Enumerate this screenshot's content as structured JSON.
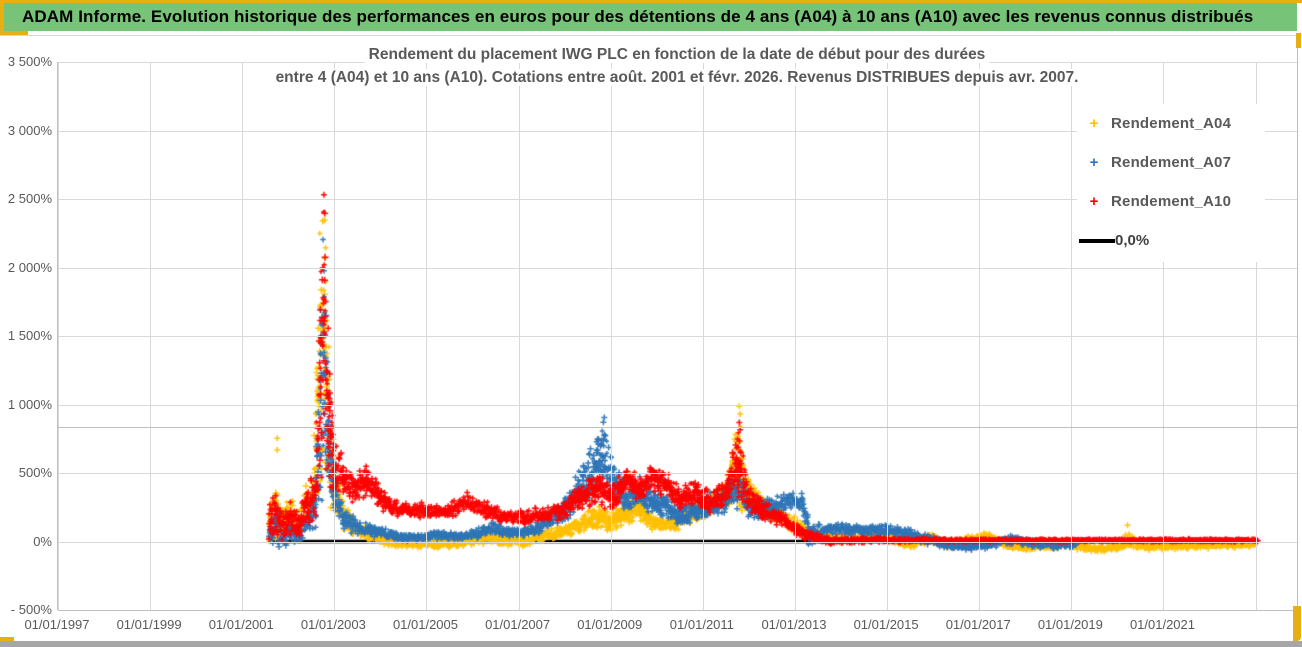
{
  "header": {
    "title": "ADAM Informe. Evolution historique des performances en euros pour des détentions de 4 ans (A04) à 10 ans (A10) avec les revenus connus distribués",
    "bg_color": "#77C377",
    "accent_color": "#E6AF13"
  },
  "chart_data": {
    "type": "scatter",
    "title_line1": "Rendement du placement IWG PLC en fonction de la date de début pour des durées",
    "title_line2": "entre 4 (A04) et 10 ans (A10). Cotations entre août. 2001 et févr. 2026. Revenus DISTRIBUES depuis avr. 2007.",
    "grid": true,
    "legend_position": "right-top",
    "x_axis": {
      "min_year": 1997,
      "max_year": 2023.92,
      "ticks": [
        {
          "year": 1997,
          "label": "01/01/1997"
        },
        {
          "year": 1999,
          "label": "01/01/1999"
        },
        {
          "year": 2001,
          "label": "01/01/2001"
        },
        {
          "year": 2003,
          "label": "01/01/2003"
        },
        {
          "year": 2005,
          "label": "01/01/2005"
        },
        {
          "year": 2007,
          "label": "01/01/2007"
        },
        {
          "year": 2009,
          "label": "01/01/2009"
        },
        {
          "year": 2011,
          "label": "01/01/2011"
        },
        {
          "year": 2013,
          "label": "01/01/2013"
        },
        {
          "year": 2015,
          "label": "01/01/2015"
        },
        {
          "year": 2017,
          "label": "01/01/2017"
        },
        {
          "year": 2019,
          "label": "01/01/2019"
        },
        {
          "year": 2021,
          "label": "01/01/2021"
        },
        {
          "year": 2023,
          "label": ""
        }
      ]
    },
    "y_axis": {
      "min_pct": -500,
      "max_pct": 3500,
      "step_pct": 500,
      "tick_labels": [
        "3 500%",
        "3 000%",
        "2 500%",
        "2 000%",
        "1 500%",
        "1 000%",
        "500%",
        "0%",
        "- 500%"
      ]
    },
    "extra_sheet_line_pct": 836,
    "zero_line": {
      "label": "0,0%",
      "color": "#000000",
      "start_year": 2001.58,
      "end_year": 2023.05,
      "pct": 0
    },
    "series": [
      {
        "name": "Rendement_A04",
        "color": "#FFC000",
        "marker": "+",
        "band_keypoints": [
          [
            2001.58,
            150,
            160
          ],
          [
            2001.75,
            220,
            200
          ],
          [
            2001.9,
            120,
            140
          ],
          [
            2002.05,
            200,
            180
          ],
          [
            2002.2,
            120,
            120
          ],
          [
            2002.35,
            250,
            160
          ],
          [
            2002.55,
            300,
            200
          ],
          [
            2002.68,
            1300,
            1200
          ],
          [
            2002.78,
            1600,
            1420
          ],
          [
            2002.88,
            800,
            620
          ],
          [
            2003.0,
            420,
            250
          ],
          [
            2003.2,
            200,
            120
          ],
          [
            2003.5,
            90,
            70
          ],
          [
            2003.9,
            40,
            50
          ],
          [
            2004.3,
            0,
            40
          ],
          [
            2004.8,
            -20,
            35
          ],
          [
            2005.3,
            -15,
            35
          ],
          [
            2005.8,
            0,
            40
          ],
          [
            2006.2,
            20,
            45
          ],
          [
            2006.7,
            10,
            40
          ],
          [
            2007.1,
            0,
            40
          ],
          [
            2007.5,
            40,
            50
          ],
          [
            2007.9,
            60,
            50
          ],
          [
            2008.3,
            120,
            70
          ],
          [
            2008.7,
            180,
            90
          ],
          [
            2009.0,
            150,
            80
          ],
          [
            2009.3,
            200,
            90
          ],
          [
            2009.6,
            250,
            100
          ],
          [
            2009.9,
            150,
            70
          ],
          [
            2010.2,
            120,
            60
          ],
          [
            2010.5,
            160,
            70
          ],
          [
            2010.9,
            230,
            90
          ],
          [
            2011.2,
            280,
            100
          ],
          [
            2011.5,
            350,
            120
          ],
          [
            2011.78,
            560,
            430
          ],
          [
            2011.95,
            380,
            150
          ],
          [
            2012.2,
            280,
            100
          ],
          [
            2012.5,
            210,
            80
          ],
          [
            2012.8,
            160,
            70
          ],
          [
            2013.1,
            100,
            60
          ],
          [
            2013.4,
            50,
            40
          ],
          [
            2013.8,
            30,
            35
          ],
          [
            2014.3,
            20,
            30
          ],
          [
            2014.7,
            50,
            40
          ],
          [
            2015.1,
            20,
            35
          ],
          [
            2015.5,
            -25,
            30
          ],
          [
            2015.9,
            30,
            45
          ],
          [
            2016.3,
            -25,
            30
          ],
          [
            2016.8,
            10,
            40
          ],
          [
            2017.2,
            40,
            40
          ],
          [
            2017.6,
            -30,
            30
          ],
          [
            2018.0,
            -45,
            25
          ],
          [
            2018.5,
            -25,
            30
          ],
          [
            2019.0,
            -20,
            30
          ],
          [
            2019.5,
            -55,
            25
          ],
          [
            2020.0,
            -45,
            25
          ],
          [
            2020.25,
            20,
            70
          ],
          [
            2020.6,
            -40,
            25
          ],
          [
            2021.2,
            -35,
            25
          ],
          [
            2021.8,
            -30,
            25
          ],
          [
            2022.4,
            -25,
            22
          ],
          [
            2023.0,
            -20,
            20
          ]
        ],
        "outliers": [
          [
            2001.76,
            754
          ],
          [
            2001.76,
            667
          ],
          [
            2011.79,
            988
          ],
          [
            2011.81,
            930
          ],
          [
            2020.22,
            118
          ]
        ]
      },
      {
        "name": "Rendement_A07",
        "color": "#2E75B6",
        "marker": "+",
        "band_keypoints": [
          [
            2001.58,
            80,
            120
          ],
          [
            2001.75,
            120,
            150
          ],
          [
            2001.9,
            0,
            60
          ],
          [
            2002.05,
            80,
            110
          ],
          [
            2002.2,
            40,
            80
          ],
          [
            2002.4,
            150,
            130
          ],
          [
            2002.6,
            250,
            180
          ],
          [
            2002.7,
            1100,
            900
          ],
          [
            2002.78,
            1400,
            1000
          ],
          [
            2002.88,
            700,
            480
          ],
          [
            2003.0,
            350,
            180
          ],
          [
            2003.2,
            160,
            90
          ],
          [
            2003.5,
            110,
            60
          ],
          [
            2003.9,
            70,
            45
          ],
          [
            2004.3,
            40,
            35
          ],
          [
            2004.8,
            30,
            30
          ],
          [
            2005.2,
            45,
            35
          ],
          [
            2005.7,
            35,
            30
          ],
          [
            2006.1,
            60,
            40
          ],
          [
            2006.4,
            100,
            55
          ],
          [
            2006.8,
            60,
            40
          ],
          [
            2007.2,
            70,
            45
          ],
          [
            2007.6,
            130,
            65
          ],
          [
            2008.0,
            240,
            110
          ],
          [
            2008.4,
            400,
            180
          ],
          [
            2008.7,
            600,
            260
          ],
          [
            2008.85,
            640,
            270
          ],
          [
            2009.0,
            480,
            200
          ],
          [
            2009.3,
            310,
            120
          ],
          [
            2009.6,
            360,
            130
          ],
          [
            2009.9,
            300,
            110
          ],
          [
            2010.2,
            260,
            100
          ],
          [
            2010.5,
            190,
            80
          ],
          [
            2010.9,
            230,
            90
          ],
          [
            2011.2,
            270,
            100
          ],
          [
            2011.5,
            300,
            100
          ],
          [
            2011.78,
            430,
            190
          ],
          [
            2012.0,
            260,
            90
          ],
          [
            2012.3,
            230,
            80
          ],
          [
            2012.6,
            250,
            80
          ],
          [
            2012.9,
            300,
            70
          ],
          [
            2013.15,
            290,
            70
          ],
          [
            2013.3,
            60,
            110
          ],
          [
            2013.6,
            80,
            45
          ],
          [
            2014.0,
            95,
            45
          ],
          [
            2014.5,
            75,
            40
          ],
          [
            2015.0,
            90,
            45
          ],
          [
            2015.4,
            60,
            40
          ],
          [
            2015.8,
            20,
            40
          ],
          [
            2016.2,
            -15,
            40
          ],
          [
            2016.7,
            -35,
            30
          ],
          [
            2017.2,
            -25,
            30
          ],
          [
            2017.7,
            15,
            40
          ],
          [
            2018.1,
            -10,
            35
          ],
          [
            2018.6,
            -25,
            30
          ],
          [
            2019.1,
            -15,
            30
          ]
        ],
        "outliers": [
          [
            2008.86,
            905
          ],
          [
            2008.84,
            870
          ]
        ]
      },
      {
        "name": "Rendement_A10",
        "color": "#FF0000",
        "marker": "+",
        "band_keypoints": [
          [
            2001.58,
            160,
            160
          ],
          [
            2001.75,
            200,
            180
          ],
          [
            2001.9,
            100,
            120
          ],
          [
            2002.05,
            180,
            150
          ],
          [
            2002.2,
            130,
            120
          ],
          [
            2002.4,
            260,
            160
          ],
          [
            2002.6,
            350,
            220
          ],
          [
            2002.7,
            1200,
            1000
          ],
          [
            2002.78,
            1500,
            1250
          ],
          [
            2002.88,
            900,
            600
          ],
          [
            2003.0,
            560,
            220
          ],
          [
            2003.2,
            480,
            160
          ],
          [
            2003.45,
            390,
            130
          ],
          [
            2003.7,
            450,
            120
          ],
          [
            2003.95,
            330,
            100
          ],
          [
            2004.2,
            260,
            80
          ],
          [
            2004.6,
            220,
            65
          ],
          [
            2005.0,
            235,
            65
          ],
          [
            2005.4,
            215,
            60
          ],
          [
            2005.9,
            290,
            75
          ],
          [
            2006.3,
            230,
            65
          ],
          [
            2006.7,
            190,
            60
          ],
          [
            2007.1,
            170,
            55
          ],
          [
            2007.5,
            195,
            60
          ],
          [
            2007.9,
            215,
            65
          ],
          [
            2008.3,
            310,
            95
          ],
          [
            2008.7,
            390,
            130
          ],
          [
            2009.0,
            310,
            110
          ],
          [
            2009.35,
            460,
            120
          ],
          [
            2009.6,
            370,
            110
          ],
          [
            2009.9,
            470,
            110
          ],
          [
            2010.2,
            420,
            100
          ],
          [
            2010.5,
            310,
            90
          ],
          [
            2010.8,
            360,
            100
          ],
          [
            2011.1,
            290,
            90
          ],
          [
            2011.45,
            330,
            95
          ],
          [
            2011.78,
            580,
            300
          ],
          [
            2012.0,
            310,
            100
          ],
          [
            2012.35,
            210,
            80
          ],
          [
            2012.7,
            160,
            65
          ],
          [
            2013.05,
            80,
            55
          ],
          [
            2013.4,
            30,
            35
          ],
          [
            2013.8,
            5,
            28
          ],
          [
            2014.3,
            10,
            22
          ],
          [
            2014.8,
            12,
            18
          ],
          [
            2015.3,
            10,
            16
          ],
          [
            2015.8,
            10,
            14
          ],
          [
            2016.4,
            8,
            12
          ],
          [
            2017.0,
            8,
            11
          ],
          [
            2017.6,
            8,
            10
          ],
          [
            2018.2,
            8,
            10
          ],
          [
            2018.8,
            8,
            10
          ],
          [
            2019.4,
            8,
            10
          ],
          [
            2020.0,
            8,
            10
          ],
          [
            2020.6,
            8,
            10
          ],
          [
            2021.2,
            8,
            10
          ],
          [
            2021.8,
            8,
            10
          ],
          [
            2022.4,
            8,
            10
          ],
          [
            2023.05,
            8,
            10
          ]
        ],
        "outliers": [
          [
            2011.79,
            868
          ],
          [
            2011.81,
            815
          ]
        ]
      }
    ]
  },
  "colors": {
    "grid": "#D9D9D9",
    "axis_line": "#BFBFBF",
    "text": "#595959",
    "bottom_strip": "#A6A6A6"
  }
}
